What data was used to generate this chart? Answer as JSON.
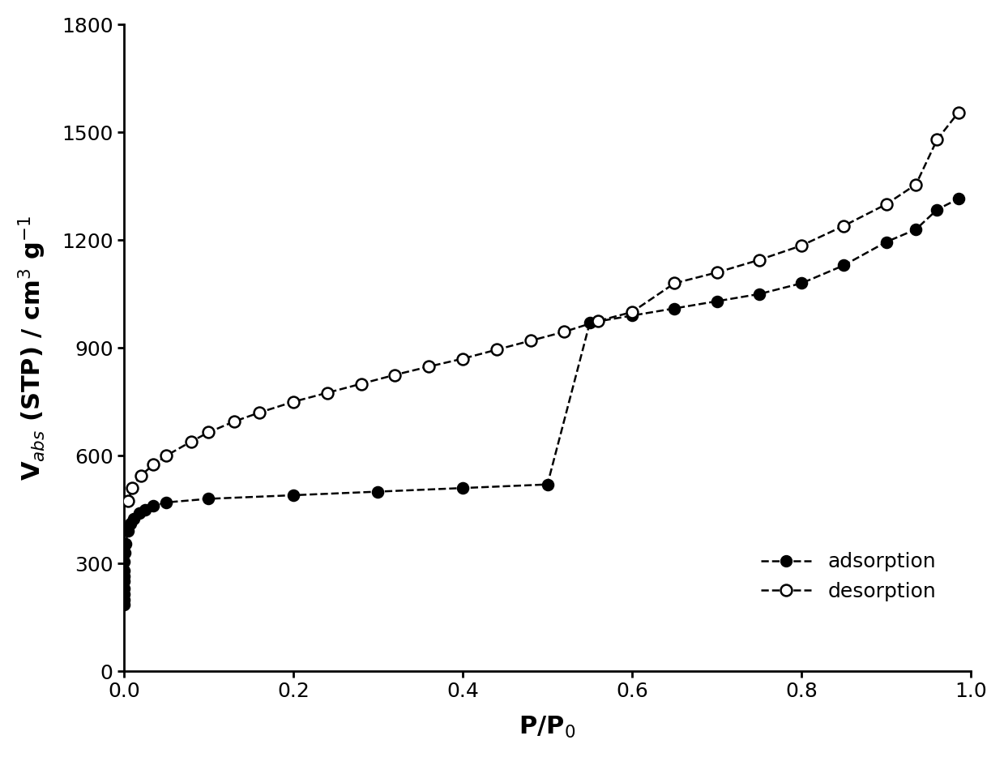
{
  "adsorption_x": [
    2e-06,
    5e-06,
    1e-05,
    2e-05,
    5e-05,
    0.0001,
    0.0002,
    0.0005,
    0.001,
    0.002,
    0.005,
    0.008,
    0.012,
    0.018,
    0.025,
    0.035,
    0.05,
    0.1,
    0.2,
    0.3,
    0.4,
    0.5,
    0.55,
    0.6,
    0.65,
    0.7,
    0.75,
    0.8,
    0.85,
    0.9,
    0.935,
    0.96,
    0.985
  ],
  "adsorption_y": [
    185,
    200,
    215,
    230,
    250,
    265,
    280,
    305,
    330,
    355,
    390,
    410,
    425,
    440,
    450,
    460,
    470,
    480,
    490,
    500,
    510,
    520,
    970,
    990,
    1010,
    1030,
    1050,
    1080,
    1130,
    1195,
    1230,
    1285,
    1315
  ],
  "desorption_x": [
    0.005,
    0.01,
    0.02,
    0.035,
    0.05,
    0.08,
    0.1,
    0.13,
    0.16,
    0.2,
    0.24,
    0.28,
    0.32,
    0.36,
    0.4,
    0.44,
    0.48,
    0.52,
    0.56,
    0.6,
    0.65,
    0.7,
    0.75,
    0.8,
    0.85,
    0.9,
    0.935,
    0.96,
    0.985
  ],
  "desorption_y": [
    475,
    510,
    545,
    575,
    600,
    640,
    665,
    695,
    720,
    750,
    775,
    800,
    825,
    848,
    870,
    895,
    920,
    945,
    975,
    1000,
    1080,
    1110,
    1145,
    1185,
    1240,
    1300,
    1355,
    1480,
    1555
  ],
  "xlabel": "P/P$_0$",
  "ylabel": "V$_{abs}$ (STP) / cm$^3$ g$^{-1}$",
  "xlim": [
    0.0,
    1.0
  ],
  "ylim": [
    0,
    1800
  ],
  "yticks": [
    0,
    300,
    600,
    900,
    1200,
    1500,
    1800
  ],
  "xticks": [
    0.0,
    0.2,
    0.4,
    0.6,
    0.8,
    1.0
  ],
  "legend_adsorption": "adsorption",
  "legend_desorption": "desorption",
  "background_color": "#ffffff",
  "line_color": "#000000",
  "marker_size": 10,
  "linewidth": 1.8
}
